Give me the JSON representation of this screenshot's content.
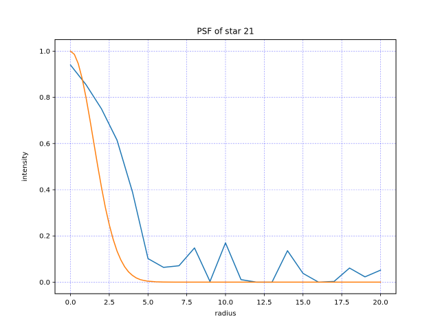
{
  "chart_data": {
    "type": "line",
    "title": "PSF of star 21",
    "xlabel": "radius",
    "ylabel": "intensity",
    "xlim": [
      -1.0,
      21.0
    ],
    "ylim": [
      -0.05,
      1.05
    ],
    "x_ticks": [
      0.0,
      2.5,
      5.0,
      7.5,
      10.0,
      12.5,
      15.0,
      17.5,
      20.0
    ],
    "x_tick_labels": [
      "0.0",
      "2.5",
      "5.0",
      "7.5",
      "10.0",
      "12.5",
      "15.0",
      "17.5",
      "20.0"
    ],
    "y_ticks": [
      0.0,
      0.2,
      0.4,
      0.6,
      0.8,
      1.0
    ],
    "y_tick_labels": [
      "0.0",
      "0.2",
      "0.4",
      "0.6",
      "0.8",
      "1.0"
    ],
    "grid": true,
    "grid_color": "#0000ff",
    "series": [
      {
        "color": "#1f77b4",
        "x": [
          0,
          1,
          2,
          3,
          4,
          5,
          6,
          7,
          8,
          9,
          10,
          11,
          12,
          13,
          14,
          15,
          16,
          17,
          18,
          19,
          20
        ],
        "y": [
          0.94,
          0.855,
          0.75,
          0.615,
          0.39,
          0.102,
          0.064,
          0.071,
          0.148,
          0.003,
          0.17,
          0.011,
          0.0,
          0.0,
          0.136,
          0.038,
          0.0,
          0.003,
          0.061,
          0.023,
          0.052
        ]
      },
      {
        "color": "#ff7f0e",
        "x": [
          0,
          0.25,
          0.5,
          0.75,
          1.0,
          1.25,
          1.5,
          1.75,
          2.0,
          2.25,
          2.5,
          2.75,
          3.0,
          3.25,
          3.5,
          3.75,
          4.0,
          4.25,
          4.5,
          4.75,
          5.0,
          5.5,
          6.0,
          7.0,
          8.0,
          10.0,
          12.5,
          15.0,
          17.5,
          20.0
        ],
        "y": [
          1.0,
          0.986,
          0.946,
          0.882,
          0.8,
          0.705,
          0.605,
          0.505,
          0.41,
          0.323,
          0.249,
          0.186,
          0.135,
          0.096,
          0.066,
          0.044,
          0.029,
          0.018,
          0.011,
          0.007,
          0.004,
          0.0015,
          0.0005,
          0.0,
          0.0,
          0.0,
          0.0,
          0.0,
          0.0,
          0.0
        ]
      }
    ]
  }
}
